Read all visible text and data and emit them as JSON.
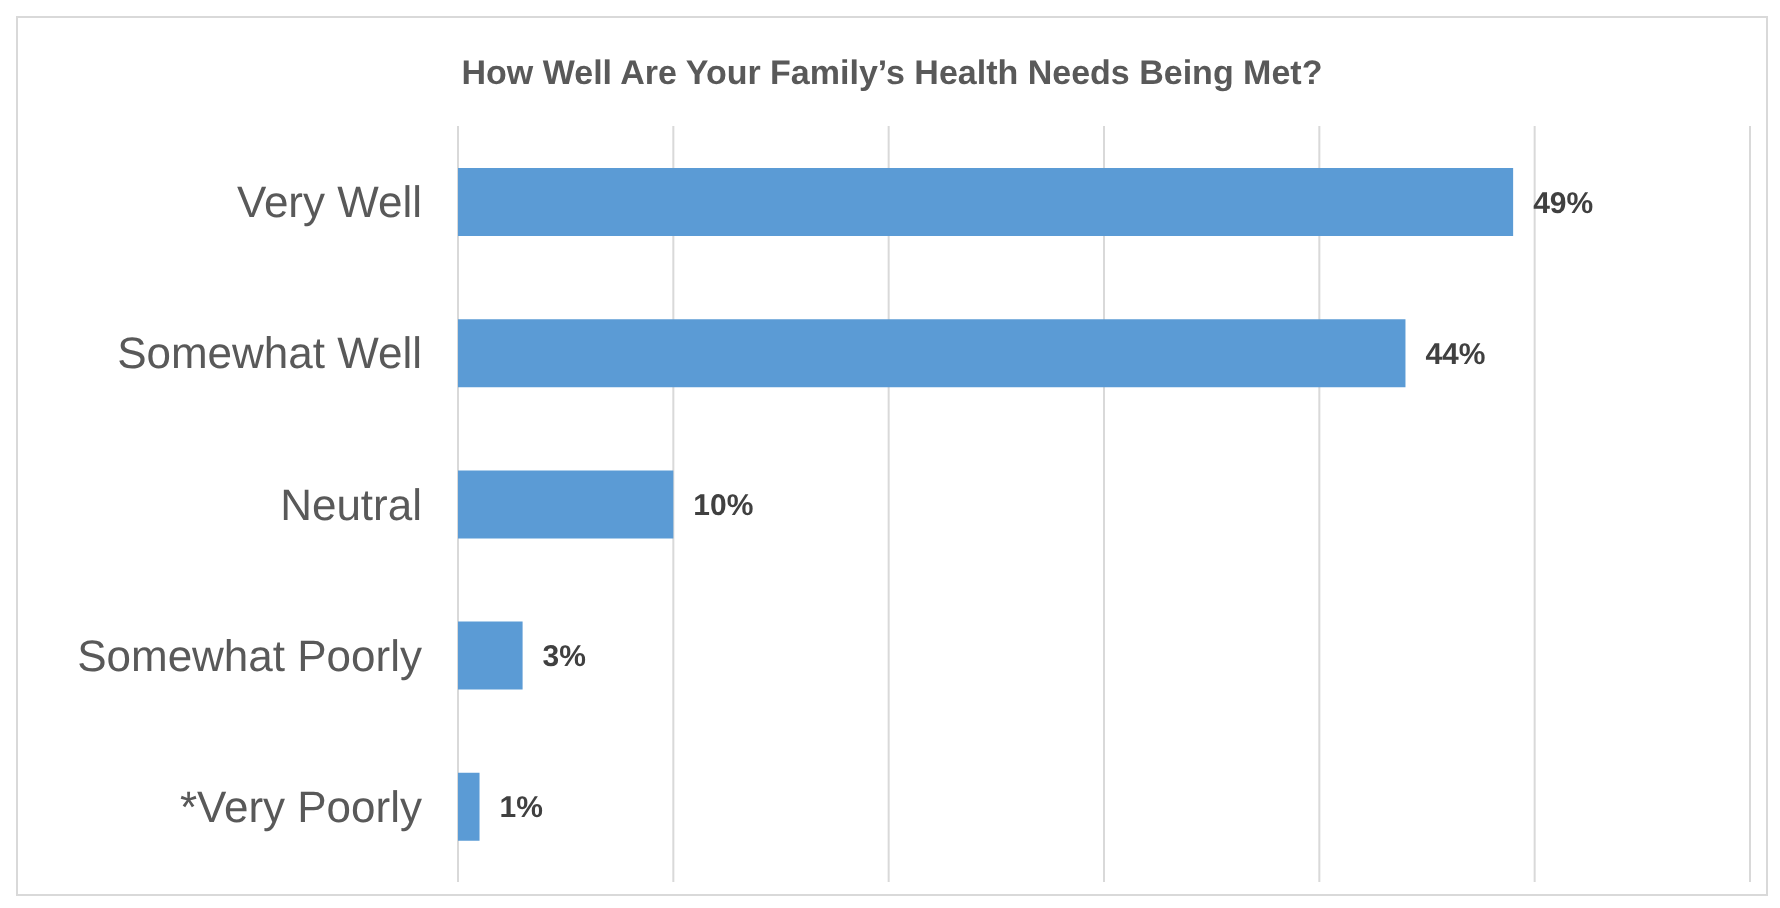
{
  "chart_data": {
    "type": "bar",
    "orientation": "horizontal",
    "title": "How Well Are Your Family’s Health Needs Being Met?",
    "categories": [
      "Very Well",
      "Somewhat Well",
      "Neutral",
      "Somewhat Poorly",
      "*Very Poorly"
    ],
    "values": [
      49,
      44,
      10,
      3,
      1
    ],
    "value_labels": [
      "49%",
      "44%",
      "10%",
      "3%",
      "1%"
    ],
    "color": "#5b9bd5",
    "xlim": [
      0,
      60
    ],
    "xticks": [
      {
        "value": 0,
        "label": null
      },
      {
        "value": 10,
        "label": null
      },
      {
        "value": 20,
        "label": null
      },
      {
        "value": 30,
        "label": null
      },
      {
        "value": 40,
        "label": null
      },
      {
        "value": 50,
        "label": null
      },
      {
        "value": 60,
        "label": null
      }
    ],
    "grid": "x",
    "tick_labels": "y",
    "legend": false
  }
}
